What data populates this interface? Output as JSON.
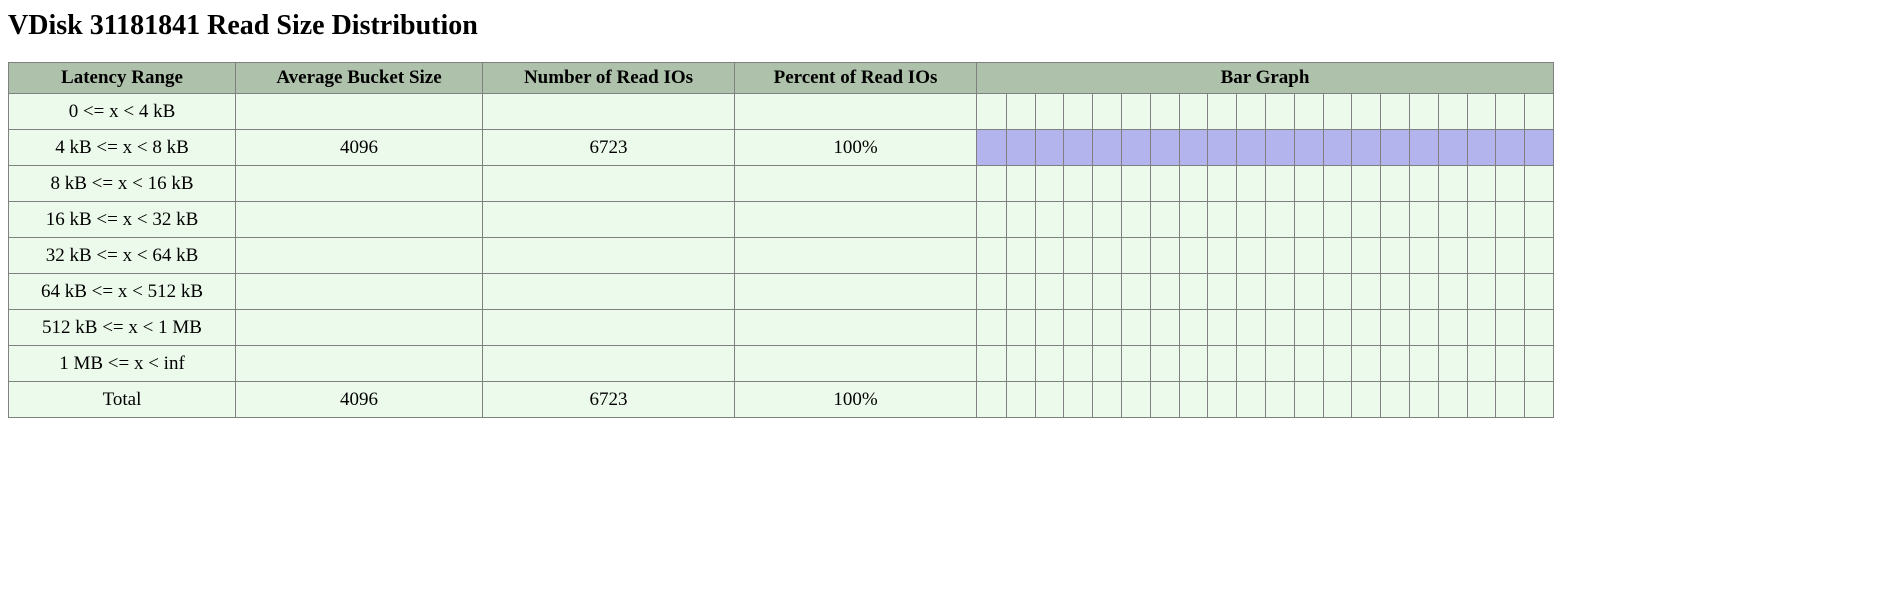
{
  "title": "VDisk 31181841 Read Size Distribution",
  "columns": {
    "range": "Latency Range",
    "avg": "Average Bucket Size",
    "num": "Number of Read IOs",
    "pct": "Percent of Read IOs",
    "bar": "Bar Graph"
  },
  "bar_graph": {
    "ticks": 20,
    "tick_color": "#808080",
    "fill_color": "#b3b3ed",
    "background_color": "#ecfaeb"
  },
  "header_bg": "#aec2ab",
  "row_bg": "#ecfaeb",
  "border_color": "#808080",
  "rows": [
    {
      "range": "0 <= x < 4 kB",
      "avg": "",
      "num": "",
      "pct": "",
      "bar_pct": 0
    },
    {
      "range": "4 kB <= x < 8 kB",
      "avg": "4096",
      "num": "6723",
      "pct": "100%",
      "bar_pct": 100
    },
    {
      "range": "8 kB <= x < 16 kB",
      "avg": "",
      "num": "",
      "pct": "",
      "bar_pct": 0
    },
    {
      "range": "16 kB <= x < 32 kB",
      "avg": "",
      "num": "",
      "pct": "",
      "bar_pct": 0
    },
    {
      "range": "32 kB <= x < 64 kB",
      "avg": "",
      "num": "",
      "pct": "",
      "bar_pct": 0
    },
    {
      "range": "64 kB <= x < 512 kB",
      "avg": "",
      "num": "",
      "pct": "",
      "bar_pct": 0
    },
    {
      "range": "512 kB <= x < 1 MB",
      "avg": "",
      "num": "",
      "pct": "",
      "bar_pct": 0
    },
    {
      "range": "1 MB <= x < inf",
      "avg": "",
      "num": "",
      "pct": "",
      "bar_pct": 0
    }
  ],
  "total": {
    "range": "Total",
    "avg": "4096",
    "num": "6723",
    "pct": "100%",
    "bar_pct": 0
  }
}
